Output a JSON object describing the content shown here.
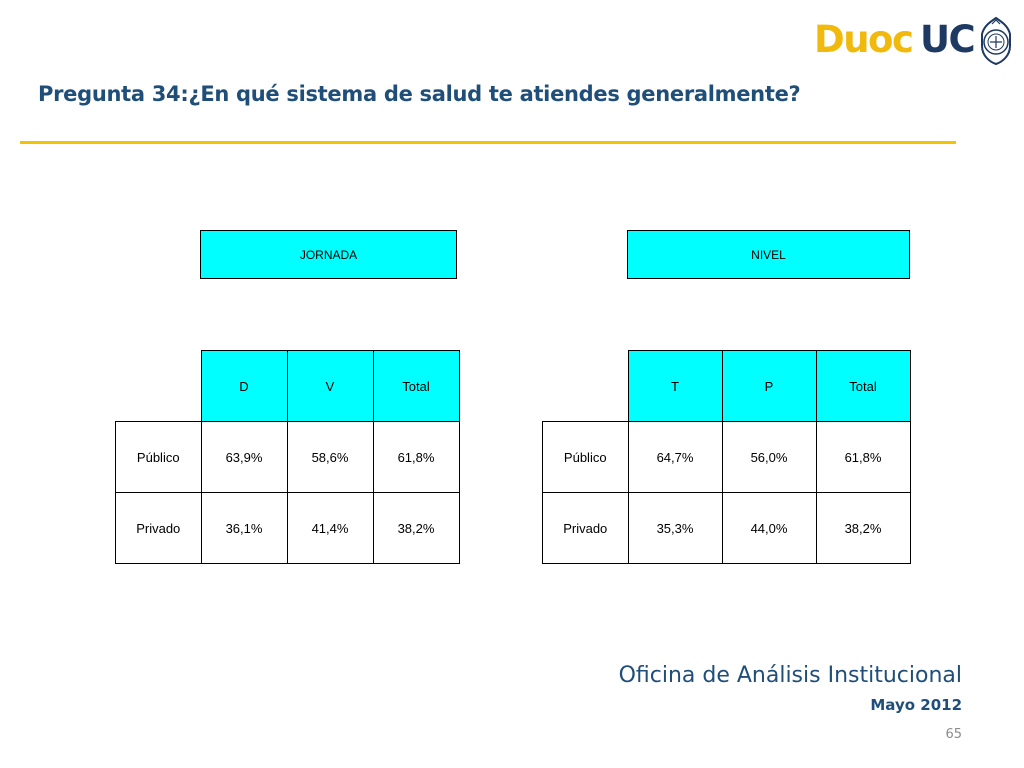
{
  "logo": {
    "part1": "Duoc",
    "part2": "UC"
  },
  "slide_title": "Pregunta 34:¿En qué sistema de salud te atiendes generalmente?",
  "tables": {
    "jornada": {
      "group_label": "JORNADA",
      "columns": [
        "D",
        "V",
        "Total"
      ],
      "rows": [
        {
          "label": "Público",
          "values": [
            "63,9%",
            "58,6%",
            "61,8%"
          ]
        },
        {
          "label": "Privado",
          "values": [
            "36,1%",
            "41,4%",
            "38,2%"
          ]
        }
      ]
    },
    "nivel": {
      "group_label": "NIVEL",
      "columns": [
        "T",
        "P",
        "Total"
      ],
      "rows": [
        {
          "label": "Público",
          "values": [
            "64,7%",
            "56,0%",
            "61,8%"
          ]
        },
        {
          "label": "Privado",
          "values": [
            "35,3%",
            "44,0%",
            "38,2%"
          ]
        }
      ]
    }
  },
  "footer": {
    "organization": "Oficina de Análisis Institucional",
    "date": "Mayo 2012",
    "page_number": "65"
  },
  "colors": {
    "header_fill": "#00ffff",
    "title": "#1f4e79",
    "rule": "#f2c300",
    "logo_gold": "#f1b90c",
    "logo_navy": "#1e3a63"
  }
}
